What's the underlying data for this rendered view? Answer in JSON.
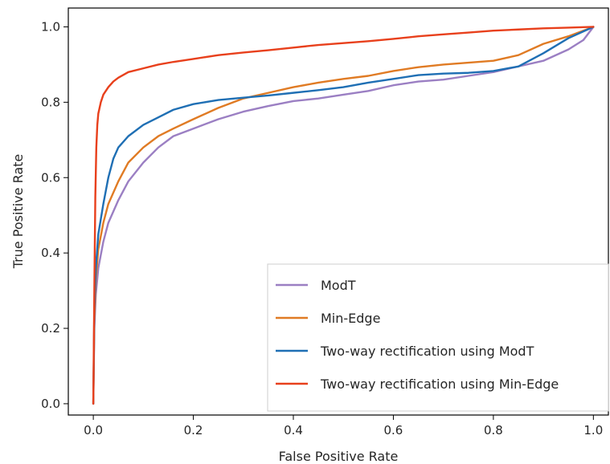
{
  "chart_data": {
    "type": "line",
    "title": "",
    "xlabel": "False Positive Rate",
    "ylabel": "True Positive Rate",
    "xlim": [
      -0.05,
      1.03
    ],
    "ylim": [
      -0.03,
      1.05
    ],
    "xticks": [
      0.0,
      0.2,
      0.4,
      0.6,
      0.8,
      1.0
    ],
    "xtick_labels": [
      "0.0",
      "0.2",
      "0.4",
      "0.6",
      "0.8",
      "1.0"
    ],
    "yticks": [
      0.0,
      0.2,
      0.4,
      0.6,
      0.8,
      1.0
    ],
    "ytick_labels": [
      "0.0",
      "0.2",
      "0.4",
      "0.6",
      "0.8",
      "1.0"
    ],
    "grid": false,
    "legend_position": "lower-right",
    "series": [
      {
        "name": "ModT",
        "color": "#9b7fc3",
        "x": [
          0,
          0.002,
          0.005,
          0.01,
          0.02,
          0.03,
          0.05,
          0.07,
          0.1,
          0.13,
          0.16,
          0.2,
          0.25,
          0.3,
          0.35,
          0.4,
          0.45,
          0.5,
          0.55,
          0.6,
          0.65,
          0.7,
          0.75,
          0.8,
          0.85,
          0.9,
          0.95,
          0.98,
          1.0
        ],
        "y": [
          0.0,
          0.2,
          0.29,
          0.36,
          0.43,
          0.48,
          0.54,
          0.59,
          0.64,
          0.68,
          0.71,
          0.73,
          0.755,
          0.775,
          0.79,
          0.803,
          0.81,
          0.82,
          0.83,
          0.845,
          0.855,
          0.86,
          0.87,
          0.88,
          0.895,
          0.91,
          0.94,
          0.965,
          1.0
        ]
      },
      {
        "name": "Min-Edge",
        "color": "#e07b24",
        "x": [
          0,
          0.002,
          0.005,
          0.01,
          0.02,
          0.03,
          0.05,
          0.07,
          0.1,
          0.13,
          0.16,
          0.2,
          0.25,
          0.3,
          0.35,
          0.4,
          0.45,
          0.5,
          0.55,
          0.6,
          0.65,
          0.7,
          0.75,
          0.8,
          0.85,
          0.9,
          0.95,
          1.0
        ],
        "y": [
          0.0,
          0.22,
          0.33,
          0.41,
          0.48,
          0.53,
          0.59,
          0.64,
          0.68,
          0.71,
          0.73,
          0.755,
          0.785,
          0.81,
          0.825,
          0.84,
          0.852,
          0.862,
          0.87,
          0.883,
          0.893,
          0.9,
          0.905,
          0.91,
          0.925,
          0.955,
          0.975,
          1.0
        ]
      },
      {
        "name": "Two-way rectification using ModT",
        "color": "#1f6fb4",
        "x": [
          0,
          0.002,
          0.005,
          0.01,
          0.02,
          0.03,
          0.04,
          0.05,
          0.07,
          0.1,
          0.13,
          0.16,
          0.2,
          0.25,
          0.3,
          0.35,
          0.4,
          0.45,
          0.5,
          0.55,
          0.6,
          0.65,
          0.7,
          0.75,
          0.8,
          0.85,
          0.9,
          0.95,
          1.0
        ],
        "y": [
          0.0,
          0.25,
          0.36,
          0.45,
          0.53,
          0.6,
          0.65,
          0.68,
          0.71,
          0.74,
          0.76,
          0.78,
          0.795,
          0.806,
          0.812,
          0.818,
          0.825,
          0.832,
          0.84,
          0.852,
          0.862,
          0.872,
          0.876,
          0.878,
          0.883,
          0.895,
          0.93,
          0.97,
          1.0
        ]
      },
      {
        "name": "Two-way rectification using Min-Edge",
        "color": "#e8401c",
        "x": [
          0,
          0.002,
          0.004,
          0.006,
          0.008,
          0.01,
          0.015,
          0.02,
          0.03,
          0.04,
          0.05,
          0.07,
          0.1,
          0.13,
          0.16,
          0.2,
          0.25,
          0.3,
          0.35,
          0.4,
          0.45,
          0.5,
          0.55,
          0.6,
          0.65,
          0.7,
          0.75,
          0.8,
          0.85,
          0.9,
          0.95,
          1.0
        ],
        "y": [
          0.0,
          0.3,
          0.55,
          0.68,
          0.74,
          0.77,
          0.8,
          0.82,
          0.84,
          0.855,
          0.865,
          0.88,
          0.89,
          0.9,
          0.907,
          0.915,
          0.925,
          0.932,
          0.938,
          0.945,
          0.952,
          0.957,
          0.962,
          0.968,
          0.975,
          0.98,
          0.985,
          0.99,
          0.993,
          0.996,
          0.998,
          1.0
        ]
      }
    ]
  }
}
